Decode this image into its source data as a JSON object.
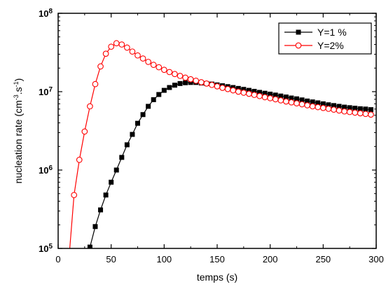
{
  "chart_data": {
    "type": "line",
    "xlabel": "temps (s)",
    "ylabel": "nucleation rate (cm⁻³.s⁻¹)",
    "yscale": "log",
    "xlim": [
      0,
      300
    ],
    "ylim": [
      100000,
      100000000
    ],
    "grid": false,
    "legend_position": "top-right",
    "x_ticks": [
      0,
      50,
      100,
      150,
      200,
      250,
      300
    ],
    "y_ticks": [
      {
        "value": 100000,
        "base": "10",
        "exp": "5"
      },
      {
        "value": 1000000,
        "base": "10",
        "exp": "6"
      },
      {
        "value": 10000000,
        "base": "10",
        "exp": "7"
      },
      {
        "value": 100000000,
        "base": "10",
        "exp": "8"
      }
    ],
    "series": [
      {
        "name": "Y=1 %",
        "color": "#000000",
        "marker": "filled-square",
        "x": [
          30,
          35,
          40,
          45,
          50,
          55,
          60,
          65,
          70,
          75,
          80,
          85,
          90,
          95,
          100,
          105,
          110,
          115,
          120,
          125,
          130,
          135,
          140,
          145,
          150,
          155,
          160,
          165,
          170,
          175,
          180,
          185,
          190,
          195,
          200,
          205,
          210,
          215,
          220,
          225,
          230,
          235,
          240,
          245,
          250,
          255,
          260,
          265,
          270,
          275,
          280,
          285,
          290,
          295
        ],
        "y": [
          104000,
          190000,
          310000,
          480000,
          700000,
          1000000,
          1450000,
          2100000,
          2850000,
          3950000,
          5100000,
          6500000,
          7900000,
          9200000,
          10400000,
          11300000,
          12100000,
          12700000,
          13000000,
          13100000,
          13100000,
          12900000,
          12700000,
          12500000,
          12200000,
          11900000,
          11600000,
          11300000,
          11000000,
          10700000,
          10400000,
          10100000,
          9800000,
          9550000,
          9300000,
          9050000,
          8800000,
          8550000,
          8300000,
          8100000,
          7850000,
          7600000,
          7400000,
          7200000,
          7000000,
          6800000,
          6650000,
          6500000,
          6350000,
          6250000,
          6150000,
          6050000,
          6000000,
          5900000
        ]
      },
      {
        "name": "Y=2%",
        "color": "#ff0000",
        "marker": "open-circle",
        "x": [
          15,
          20,
          25,
          30,
          35,
          40,
          45,
          50,
          55,
          60,
          65,
          70,
          75,
          80,
          85,
          90,
          95,
          100,
          105,
          110,
          115,
          120,
          125,
          130,
          135,
          140,
          145,
          150,
          155,
          160,
          165,
          170,
          175,
          180,
          185,
          190,
          195,
          200,
          205,
          210,
          215,
          220,
          225,
          230,
          235,
          240,
          245,
          250,
          255,
          260,
          265,
          270,
          275,
          280,
          285,
          290,
          295
        ],
        "y": [
          480000,
          1350000,
          3100000,
          6500000,
          12500000,
          21000000,
          30500000,
          37500000,
          41500000,
          40000000,
          36500000,
          32500000,
          29000000,
          26500000,
          24000000,
          22000000,
          20500000,
          19000000,
          17800000,
          16800000,
          15900000,
          15100000,
          14400000,
          13800000,
          13200000,
          12700000,
          12200000,
          11700000,
          11200000,
          10800000,
          10400000,
          10000000,
          9700000,
          9400000,
          9100000,
          8800000,
          8500000,
          8250000,
          8000000,
          7750000,
          7500000,
          7300000,
          7100000,
          6900000,
          6700000,
          6500000,
          6350000,
          6200000,
          6050000,
          5900000,
          5750000,
          5600000,
          5500000,
          5400000,
          5300000,
          5200000,
          5100000
        ]
      }
    ],
    "curve_extension": {
      "note_free": true,
      "y2_start": {
        "x": 11,
        "y": 100000
      }
    }
  }
}
